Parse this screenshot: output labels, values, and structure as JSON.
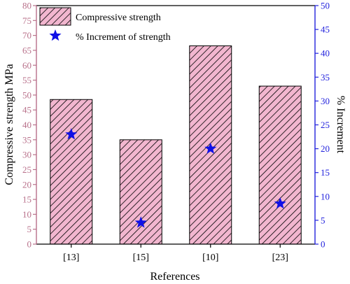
{
  "chart_data": {
    "type": "bar",
    "categories": [
      "[13]",
      "[15]",
      "[10]",
      "[23]"
    ],
    "series": [
      {
        "name": "Compressive strength",
        "axis": "left",
        "kind": "bar",
        "values": [
          48.5,
          35,
          66.5,
          53
        ]
      },
      {
        "name": "% Increment of strength",
        "axis": "right",
        "kind": "scatter",
        "marker": "star",
        "values": [
          23,
          4.5,
          20,
          8.5
        ]
      }
    ],
    "xlabel": "References",
    "ylabel": "Compressive strength MPa",
    "y2label": "% Increment",
    "ylim": [
      0,
      80
    ],
    "y2lim": [
      0,
      50
    ],
    "yticks": [
      0,
      5,
      10,
      15,
      20,
      25,
      30,
      35,
      40,
      45,
      50,
      55,
      60,
      65,
      70,
      75,
      80
    ],
    "y2ticks": [
      0,
      5,
      10,
      15,
      20,
      25,
      30,
      35,
      40,
      45,
      50
    ],
    "grid": false,
    "legend_position": "top-left",
    "colors": {
      "bar_fill": "#f2b6cf",
      "bar_hatch": "#000000",
      "left_axis": "#b8708a",
      "right_axis": "#2222dd",
      "star": "#1010e6"
    }
  }
}
